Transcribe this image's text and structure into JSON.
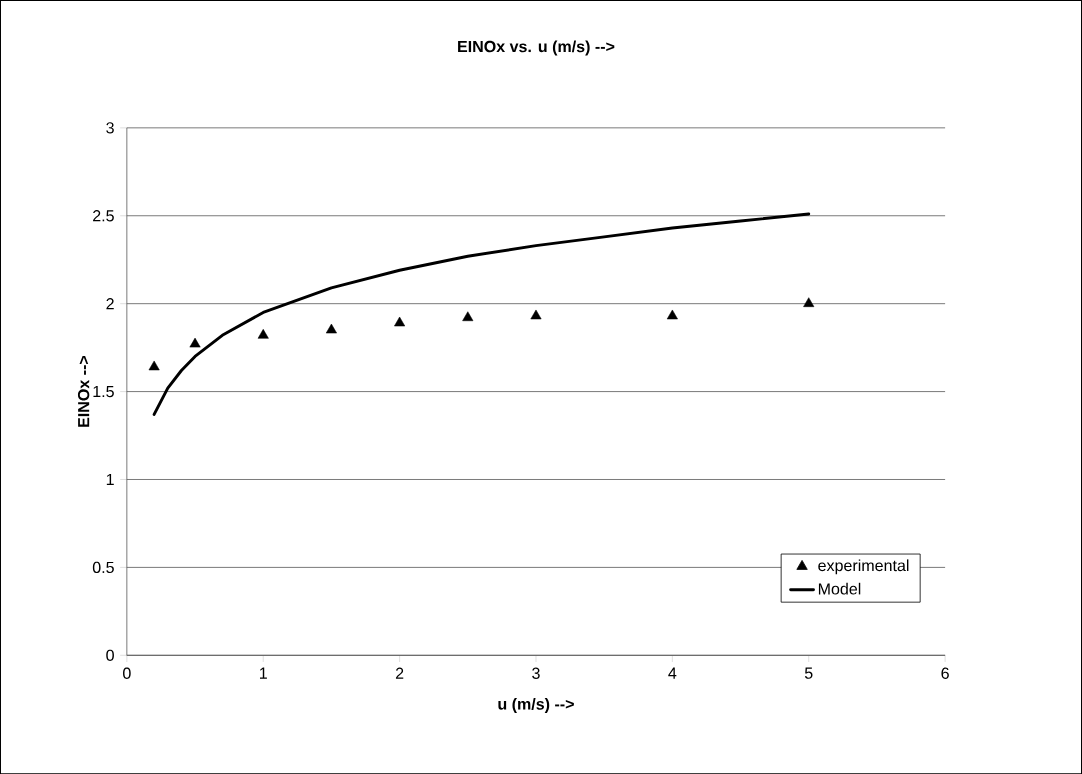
{
  "chart_data": {
    "type": "scatter",
    "title": "EINOx vs. u (m/s) -->",
    "xlabel": "u (m/s) -->",
    "ylabel": "EINOx -->",
    "xlim": [
      0,
      6
    ],
    "ylim": [
      0,
      3
    ],
    "xticks": [
      0,
      1,
      2,
      3,
      4,
      5,
      6
    ],
    "yticks": [
      0,
      0.5,
      1,
      1.5,
      2,
      2.5,
      3
    ],
    "grid": "y",
    "legend": "bottom right",
    "series": [
      {
        "name": "experimental",
        "marker": "triangle",
        "color": "#000000",
        "x": [
          0.2,
          0.5,
          1,
          1.5,
          2,
          2.5,
          3,
          4,
          5
        ],
        "values": [
          1.64,
          1.77,
          1.82,
          1.85,
          1.89,
          1.92,
          1.93,
          1.93,
          2.0
        ]
      },
      {
        "name": "Model",
        "type": "line",
        "marker": "none",
        "line_style": "solid",
        "color": "#000000",
        "x": [
          0.2,
          0.3,
          0.4,
          0.5,
          0.7,
          1,
          1.5,
          2,
          2.5,
          3,
          3.5,
          4,
          4.5,
          5
        ],
        "values": [
          1.37,
          1.52,
          1.62,
          1.7,
          1.82,
          1.95,
          2.09,
          2.19,
          2.27,
          2.33,
          2.38,
          2.43,
          2.47,
          2.51
        ]
      }
    ]
  }
}
